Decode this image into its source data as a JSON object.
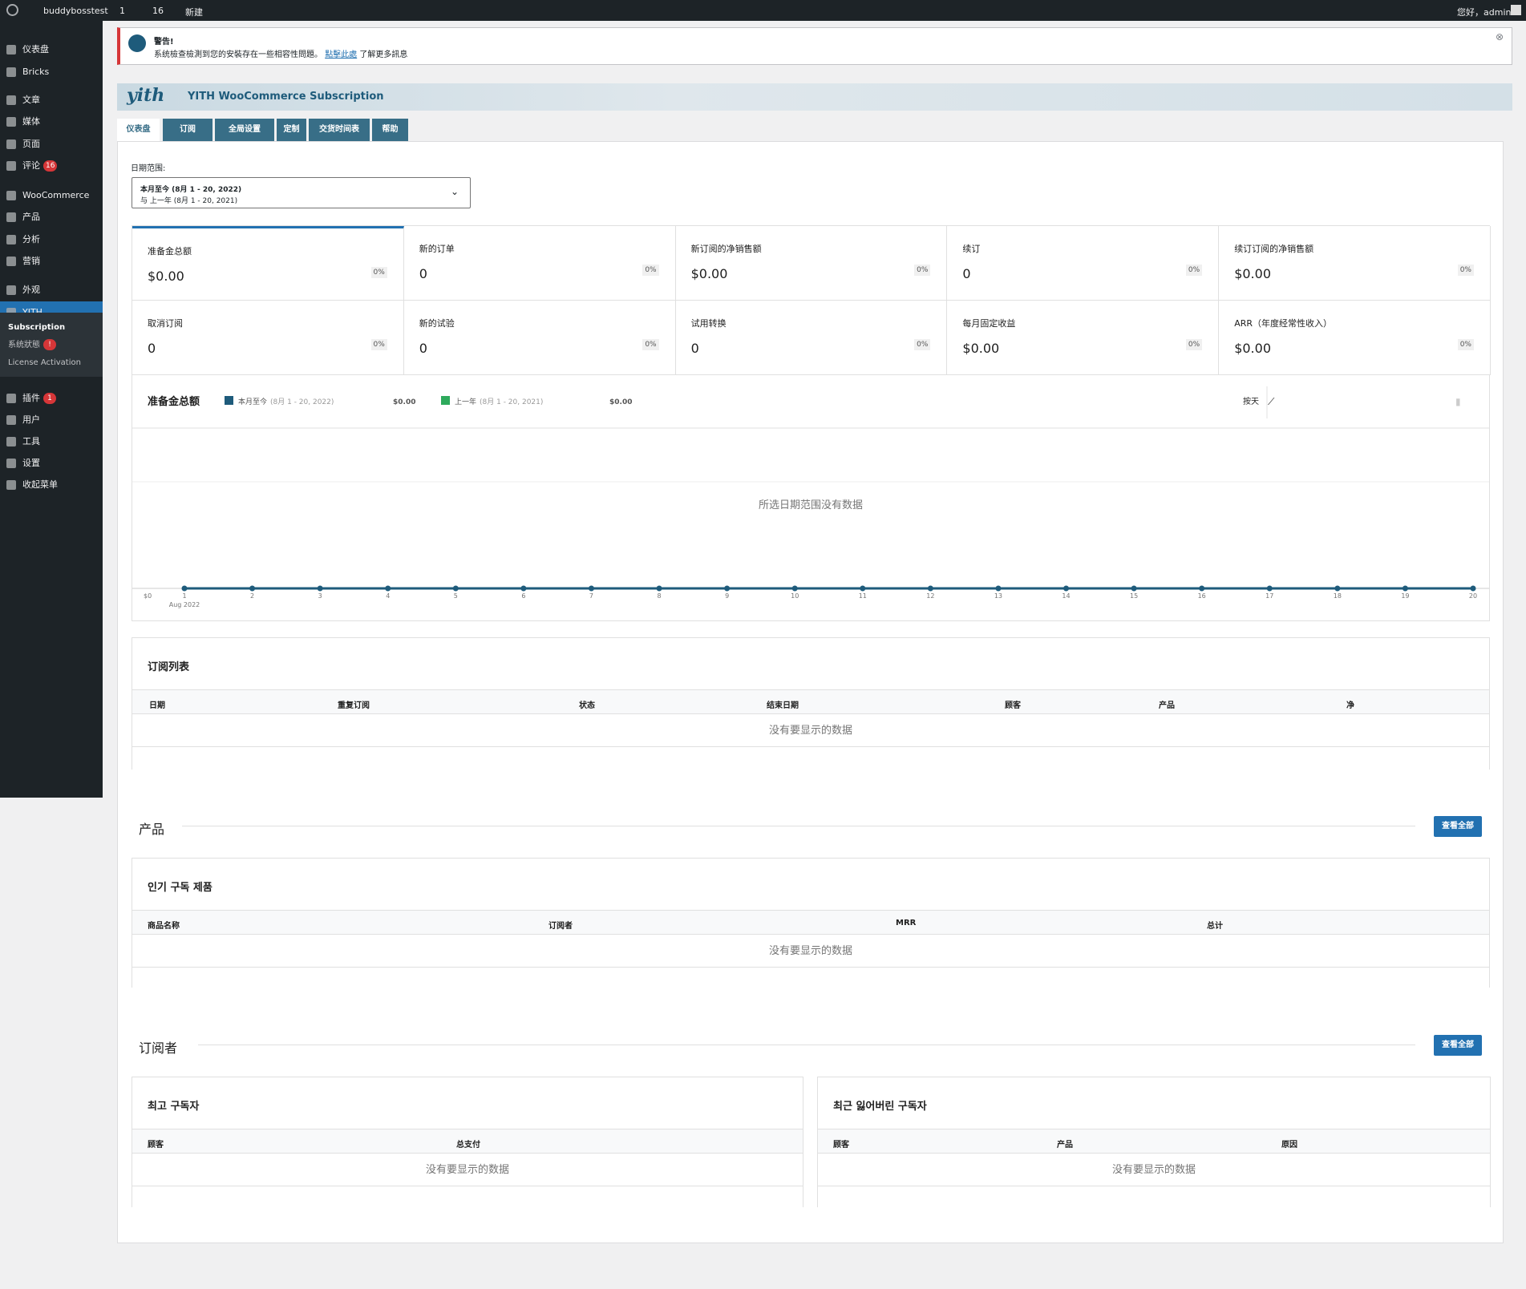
{
  "admin_bar": {
    "site": "buddybosstest",
    "updates": "1",
    "comments": "16",
    "new": "新建",
    "greeting": "您好，admin"
  },
  "sidebar": {
    "items": [
      {
        "label": "仪表盘"
      },
      {
        "label": "Bricks"
      },
      {
        "label": "文章"
      },
      {
        "label": "媒体"
      },
      {
        "label": "页面"
      },
      {
        "label": "评论",
        "badge": "16"
      },
      {
        "label": "WooCommerce"
      },
      {
        "label": "产品"
      },
      {
        "label": "分析"
      },
      {
        "label": "营销"
      },
      {
        "label": "外观"
      },
      {
        "label": "YITH"
      },
      {
        "label": "插件",
        "badge": "1"
      },
      {
        "label": "用户"
      },
      {
        "label": "工具"
      },
      {
        "label": "设置"
      },
      {
        "label": "收起菜单"
      }
    ],
    "submenu": [
      {
        "label": "Subscription"
      },
      {
        "label": "系统狀態",
        "badge": "!"
      },
      {
        "label": "License Activation"
      }
    ]
  },
  "notice": {
    "title": "警告!",
    "text": "系统檢查檢測到您的安裝存在一些相容性問題。",
    "link": "點擊此處",
    "after": "了解更多訊息"
  },
  "header": {
    "logo": "yith",
    "title": "YITH WooCommerce Subscription"
  },
  "tabs": [
    "仪表盘",
    "订阅",
    "全局设置",
    "定制",
    "交货时间表",
    "帮助"
  ],
  "date_range": {
    "label": "日期范围:",
    "current": "本月至今 (8月 1 - 20, 2022)",
    "compare": "与 上一年 (8月 1 - 20, 2021)"
  },
  "stats": [
    {
      "label": "准备金总额",
      "value": "$0.00",
      "change": "0%"
    },
    {
      "label": "新的订单",
      "value": "0",
      "change": "0%"
    },
    {
      "label": "新订阅的净销售额",
      "value": "$0.00",
      "change": "0%"
    },
    {
      "label": "续订",
      "value": "0",
      "change": "0%"
    },
    {
      "label": "续订订阅的净销售额",
      "value": "$0.00",
      "change": "0%"
    },
    {
      "label": "取消订阅",
      "value": "0",
      "change": "0%"
    },
    {
      "label": "新的试验",
      "value": "0",
      "change": "0%"
    },
    {
      "label": "试用转换",
      "value": "0",
      "change": "0%"
    },
    {
      "label": "每月固定收益",
      "value": "$0.00",
      "change": "0%"
    },
    {
      "label": "ARR（年度经常性收入）",
      "value": "$0.00",
      "change": "0%"
    }
  ],
  "chart": {
    "type": "line",
    "title": "准备金总额",
    "legend": [
      {
        "name": "本月至今",
        "range": "(8月 1 - 20, 2022)",
        "total": "$0.00"
      },
      {
        "name": "上一年",
        "range": "(8月 1 - 20, 2021)",
        "total": "$0.00"
      }
    ],
    "interval": "按天",
    "empty_message": "所选日期范围没有数据",
    "x": [
      1,
      2,
      3,
      4,
      5,
      6,
      7,
      8,
      9,
      10,
      11,
      12,
      13,
      14,
      15,
      16,
      17,
      18,
      19,
      20
    ],
    "x_sublabel": "Aug 2022",
    "values": [
      0,
      0,
      0,
      0,
      0,
      0,
      0,
      0,
      0,
      0,
      0,
      0,
      0,
      0,
      0,
      0,
      0,
      0,
      0,
      0
    ],
    "yticks": [
      {
        "value": 0,
        "label": "$0"
      }
    ],
    "color": "#1e5b7b"
  },
  "subscription_list": {
    "title": "订阅列表",
    "columns": [
      "日期",
      "重复订阅",
      "状态",
      "结束日期",
      "顾客",
      "产品",
      "净"
    ],
    "empty": "没有要显示的数据"
  },
  "products": {
    "heading": "产品",
    "button": "查看全部",
    "card": {
      "title": "인기 구독 제품",
      "columns": [
        "商品名称",
        "订阅者",
        "MRR",
        "总计"
      ],
      "empty": "没有要显示的数据"
    }
  },
  "subscribers": {
    "heading": "订阅者",
    "button": "查看全部",
    "cards": [
      {
        "title": "최고 구독자",
        "columns": [
          "顾客",
          "总支付"
        ],
        "empty": "没有要显示的数据"
      },
      {
        "title": "최근 잃어버린 구독자",
        "columns": [
          "顾客",
          "产品",
          "原因"
        ],
        "empty": "没有要显示的数据"
      }
    ]
  }
}
